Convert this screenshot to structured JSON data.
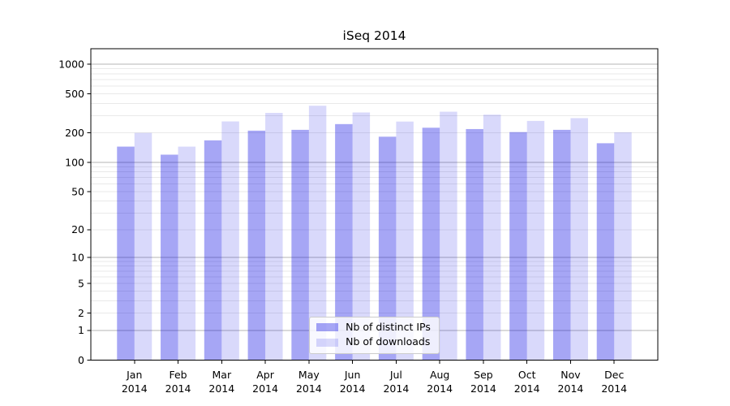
{
  "chart_data": {
    "type": "bar",
    "title": "iSeq 2014",
    "categories": [
      "Jan",
      "Feb",
      "Mar",
      "Apr",
      "May",
      "Jun",
      "Jul",
      "Aug",
      "Sep",
      "Oct",
      "Nov",
      "Dec"
    ],
    "x_year_label": "2014",
    "series": [
      {
        "name": "Nb of distinct IPs",
        "color": "rgba(0,0,225,0.35)",
        "values": [
          145,
          120,
          168,
          211,
          215,
          246,
          183,
          226,
          219,
          204,
          215,
          157
        ]
      },
      {
        "name": "Nb of downloads",
        "color": "rgba(0,0,225,0.15)",
        "values": [
          200,
          145,
          262,
          320,
          378,
          323,
          261,
          329,
          307,
          265,
          283,
          203
        ]
      }
    ],
    "y_axis": {
      "scale": "log1p",
      "tick_labels": [
        "1000",
        "500",
        "200",
        "100",
        "50",
        "20",
        "10",
        "5",
        "2",
        "1",
        "0"
      ],
      "tick_values": [
        1000,
        500,
        200,
        100,
        50,
        20,
        10,
        5,
        2,
        1,
        0
      ],
      "major_gridlines": [
        1,
        10,
        100,
        1000
      ],
      "minor_gridlines": [
        2,
        3,
        4,
        5,
        6,
        7,
        8,
        9,
        20,
        30,
        40,
        50,
        60,
        70,
        80,
        90,
        200,
        300,
        400,
        500,
        600,
        700,
        800,
        900
      ],
      "ylim": [
        0,
        1434
      ]
    },
    "legend": {
      "position": "lower-center"
    },
    "grid": "horizontal",
    "colors": {
      "major_grid": "#b4b4b4",
      "minor_grid": "#e9e9e9",
      "spine": "#000000",
      "background": "#ffffff"
    }
  }
}
